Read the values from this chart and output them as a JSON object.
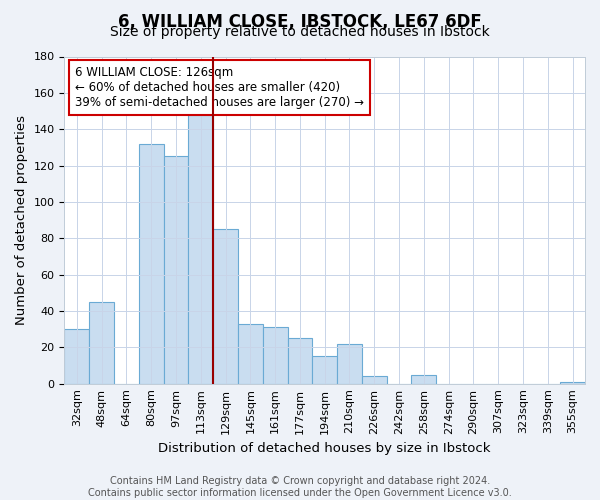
{
  "title": "6, WILLIAM CLOSE, IBSTOCK, LE67 6DF",
  "subtitle": "Size of property relative to detached houses in Ibstock",
  "xlabel": "Distribution of detached houses by size in Ibstock",
  "ylabel": "Number of detached properties",
  "bar_labels": [
    "32sqm",
    "48sqm",
    "64sqm",
    "80sqm",
    "97sqm",
    "113sqm",
    "129sqm",
    "145sqm",
    "161sqm",
    "177sqm",
    "194sqm",
    "210sqm",
    "226sqm",
    "242sqm",
    "258sqm",
    "274sqm",
    "290sqm",
    "307sqm",
    "323sqm",
    "339sqm",
    "355sqm"
  ],
  "bar_values": [
    30,
    45,
    0,
    132,
    125,
    148,
    85,
    33,
    31,
    25,
    15,
    22,
    4,
    0,
    5,
    0,
    0,
    0,
    0,
    0,
    1
  ],
  "bar_color": "#c9ddf0",
  "bar_edge_color": "#6aaad4",
  "marker_bin_index": 5,
  "marker_line_color": "#990000",
  "annotation_lines": [
    "6 WILLIAM CLOSE: 126sqm",
    "← 60% of detached houses are smaller (420)",
    "39% of semi-detached houses are larger (270) →"
  ],
  "annotation_box_color": "#ffffff",
  "annotation_box_edge": "#cc0000",
  "ylim": [
    0,
    180
  ],
  "yticks": [
    0,
    20,
    40,
    60,
    80,
    100,
    120,
    140,
    160,
    180
  ],
  "footer_line1": "Contains HM Land Registry data © Crown copyright and database right 2024.",
  "footer_line2": "Contains public sector information licensed under the Open Government Licence v3.0.",
  "bg_color": "#eef2f8",
  "plot_bg_color": "#ffffff",
  "title_fontsize": 12,
  "subtitle_fontsize": 10,
  "axis_label_fontsize": 9.5,
  "tick_fontsize": 8,
  "annotation_fontsize": 8.5,
  "footer_fontsize": 7
}
